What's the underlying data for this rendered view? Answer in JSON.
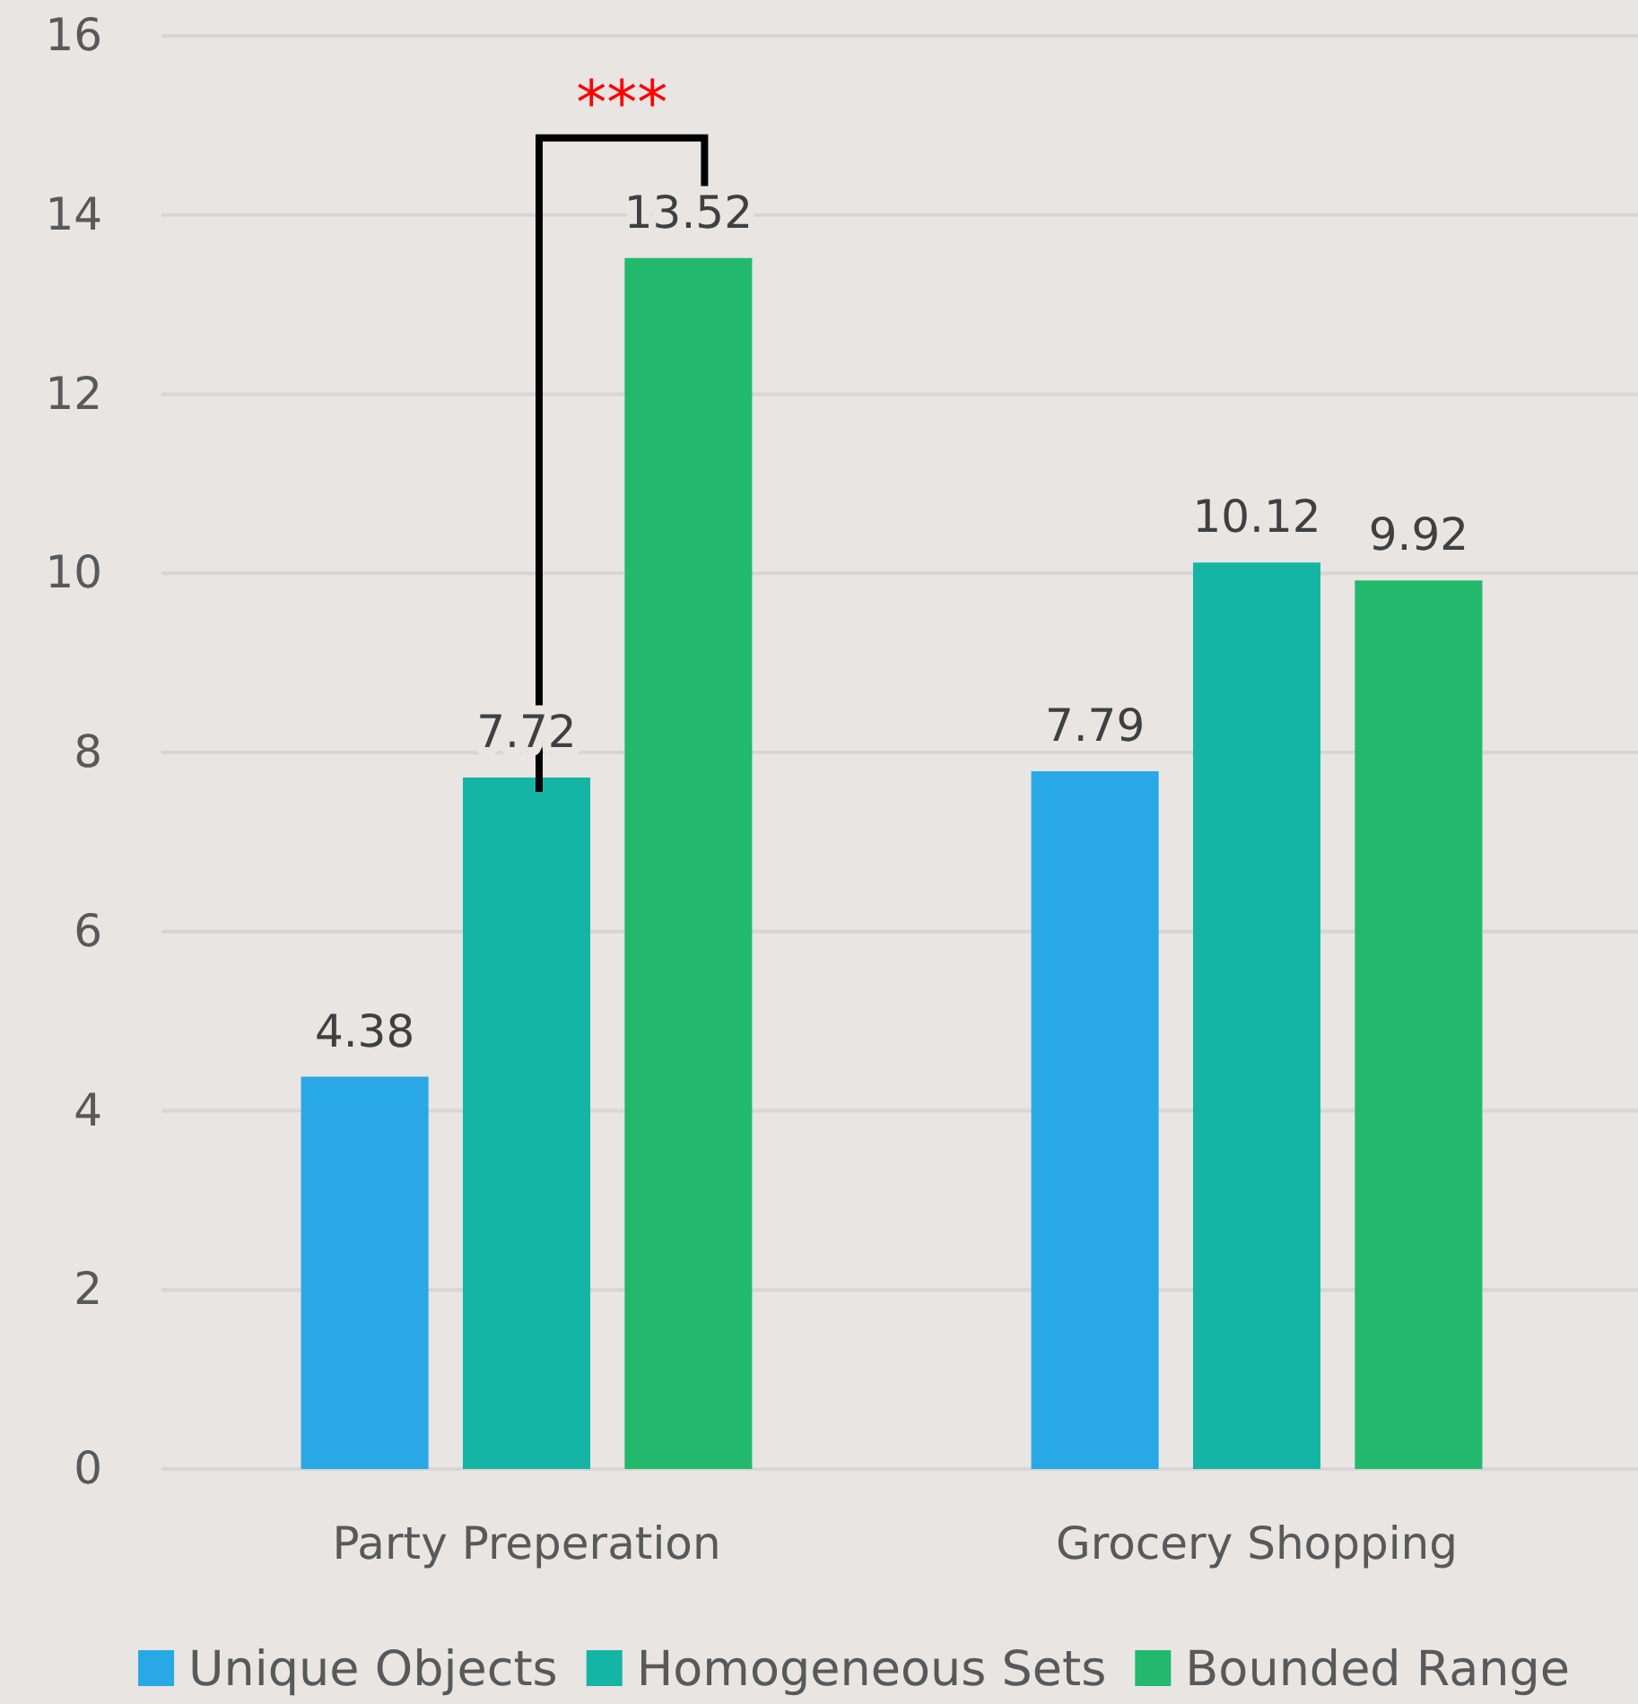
{
  "chart_data": {
    "type": "bar",
    "categories": [
      "Party Preperation",
      "Grocery Shopping"
    ],
    "series": [
      {
        "name": "Unique Objects",
        "color": "#29a8e6",
        "values": [
          4.38,
          7.79
        ]
      },
      {
        "name": "Homogeneous Sets",
        "color": "#15b5a6",
        "values": [
          7.72,
          10.12
        ]
      },
      {
        "name": "Bounded Range",
        "color": "#22b96d",
        "values": [
          13.52,
          9.92
        ]
      }
    ],
    "ylim": [
      0,
      16
    ],
    "yticks": [
      0,
      2,
      4,
      6,
      8,
      10,
      12,
      14,
      16
    ],
    "grid": "y",
    "legend": "bottom",
    "data_labels": true,
    "annotations": [
      "***"
    ]
  }
}
